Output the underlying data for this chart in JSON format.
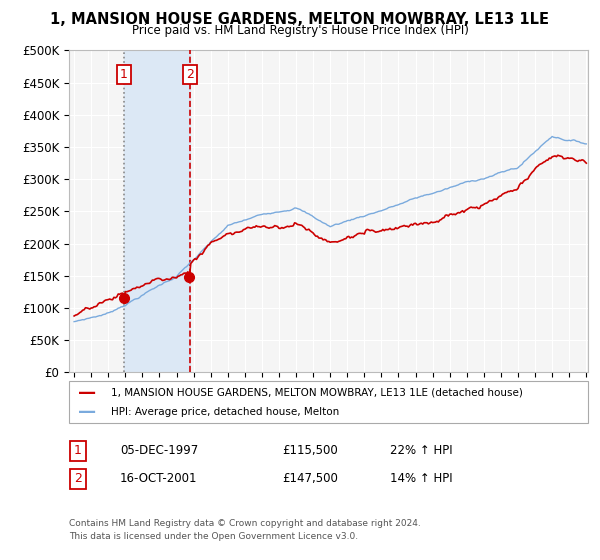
{
  "title": "1, MANSION HOUSE GARDENS, MELTON MOWBRAY, LE13 1LE",
  "subtitle": "Price paid vs. HM Land Registry's House Price Index (HPI)",
  "legend_label_red": "1, MANSION HOUSE GARDENS, MELTON MOWBRAY, LE13 1LE (detached house)",
  "legend_label_blue": "HPI: Average price, detached house, Melton",
  "sale1_label": "1",
  "sale1_date": "05-DEC-1997",
  "sale1_price": "£115,500",
  "sale1_hpi": "22% ↑ HPI",
  "sale1_year": 1997.92,
  "sale1_value": 115500,
  "sale2_label": "2",
  "sale2_date": "16-OCT-2001",
  "sale2_price": "£147,500",
  "sale2_hpi": "14% ↑ HPI",
  "sale2_year": 2001.79,
  "sale2_value": 147500,
  "footnote1": "Contains HM Land Registry data © Crown copyright and database right 2024.",
  "footnote2": "This data is licensed under the Open Government Licence v3.0.",
  "ylim": [
    0,
    500000
  ],
  "yticks": [
    0,
    50000,
    100000,
    150000,
    200000,
    250000,
    300000,
    350000,
    400000,
    450000,
    500000
  ],
  "xlim_start": 1995,
  "xlim_end": 2025,
  "background_color": "#ffffff",
  "plot_bg_color": "#f5f5f5",
  "grid_color": "#ffffff",
  "shaded_color": "#dce8f5",
  "red_color": "#cc0000",
  "blue_color": "#7aaadd"
}
